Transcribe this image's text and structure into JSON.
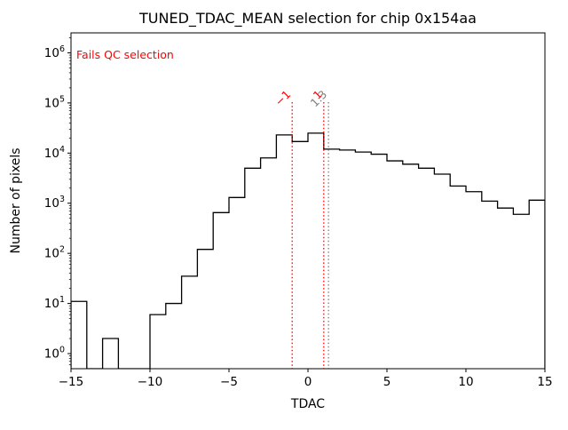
{
  "figure": {
    "background": "#ffffff"
  },
  "chart_data": {
    "type": "step-histogram",
    "title": "TUNED_TDAC_MEAN selection for chip 0x154aa",
    "xlabel": "TDAC",
    "ylabel": "Number of pixels",
    "annotation": {
      "text": "Fails QC selection",
      "color": "#ff0000"
    },
    "line_color": "#000000",
    "xlim": [
      -15,
      15
    ],
    "ylim": [
      0.5,
      2500000
    ],
    "yscale": "log",
    "grid": false,
    "legend": "none",
    "x_ticks": [
      -15,
      -10,
      -5,
      0,
      5,
      10,
      15
    ],
    "y_tick_exponents": [
      0,
      1,
      2,
      3,
      4,
      5,
      6
    ],
    "bin_edges": [
      -15,
      -14,
      -13,
      -12,
      -11,
      -10,
      -9,
      -8,
      -7,
      -6,
      -5,
      -4,
      -3,
      -2,
      -1,
      0,
      1,
      2,
      3,
      4,
      5,
      6,
      7,
      8,
      9,
      10,
      11,
      12,
      13,
      14,
      15
    ],
    "counts": [
      11,
      0,
      2,
      0,
      0,
      6,
      10,
      35,
      120,
      650,
      1300,
      5000,
      8000,
      23000,
      17000,
      25000,
      12000,
      11500,
      10500,
      9500,
      7000,
      6000,
      5000,
      3800,
      2200,
      1700,
      1100,
      800,
      600,
      1150
    ],
    "vlines": [
      {
        "x": -1,
        "label": "-1",
        "color": "#ff0000"
      },
      {
        "x": 1,
        "label": "1",
        "color": "#ff0000"
      },
      {
        "x": 1.3,
        "label": "1.3",
        "color": "#7f7f7f"
      }
    ]
  }
}
